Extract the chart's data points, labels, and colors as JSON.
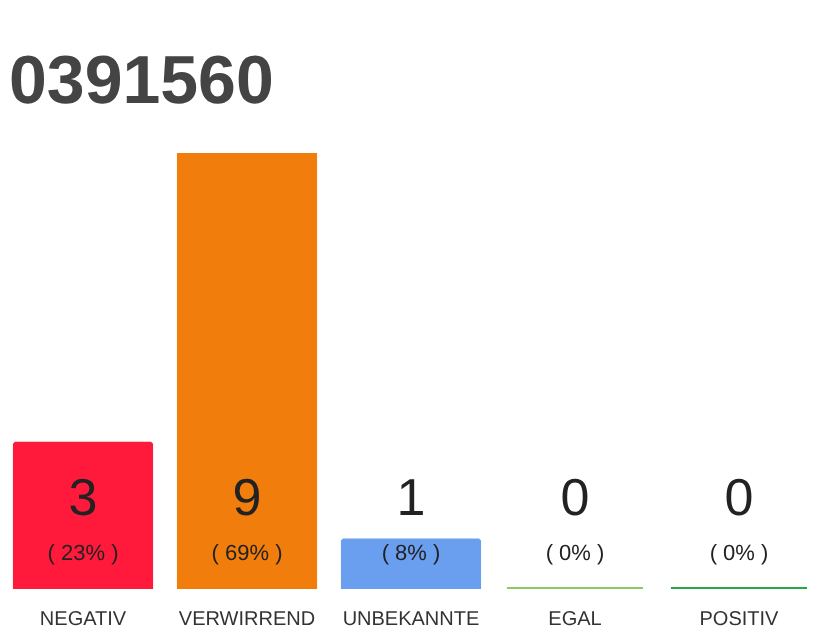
{
  "chart_data": {
    "type": "bar",
    "title": "0391560",
    "categories": [
      "NEGATIV",
      "VERWIRREND",
      "UNBEKANNTE",
      "EGAL",
      "POSITIV"
    ],
    "values": [
      3,
      9,
      1,
      0,
      0
    ],
    "colors": [
      "#ff1a3c",
      "#f07d0c",
      "#6a9eef",
      "#8cc760",
      "#27a844"
    ],
    "value_labels": [
      "3\n( 23% )",
      "9\n( 69% )",
      "1\n( 8% )",
      "0\n( 0% )",
      "0\n( 0% )"
    ],
    "ylim": [
      0,
      9
    ]
  }
}
